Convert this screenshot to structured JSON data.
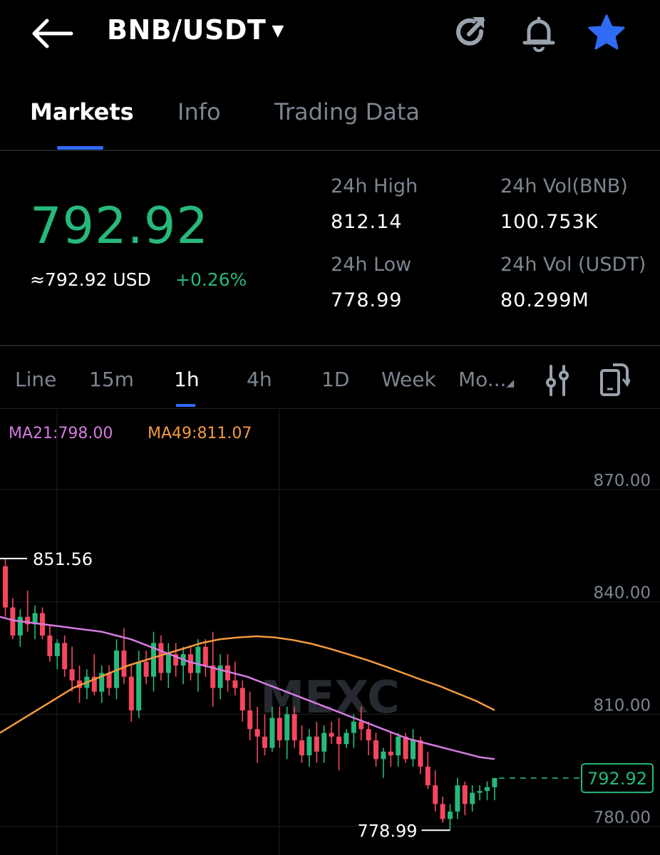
{
  "header": {
    "pair": "BNB/USDT",
    "icons": {
      "back": "back-arrow-icon",
      "share": "share-refresh-icon",
      "alert": "bell-icon",
      "favorite": "star-icon"
    },
    "favorite_color": "#2f6bf5"
  },
  "tabs": [
    {
      "label": "Markets",
      "active": true
    },
    {
      "label": "Info",
      "active": false
    },
    {
      "label": "Trading Data",
      "active": false
    }
  ],
  "price": {
    "last": "792.92",
    "usd": "≈792.92 USD",
    "change": "+0.26%",
    "color_up": "#26b97a"
  },
  "stats": {
    "high_label": "24h High",
    "high_value": "812.14",
    "low_label": "24h Low",
    "low_value": "778.99",
    "vol_base_label": "24h Vol(BNB)",
    "vol_base_value": "100.753K",
    "vol_quote_label": "24h Vol (USDT)",
    "vol_quote_value": "80.299M"
  },
  "intervals": [
    {
      "label": "Line",
      "active": false
    },
    {
      "label": "15m",
      "active": false
    },
    {
      "label": "1h",
      "active": true
    },
    {
      "label": "4h",
      "active": false
    },
    {
      "label": "1D",
      "active": false
    },
    {
      "label": "Week",
      "active": false
    },
    {
      "label": "Mo...",
      "active": false
    }
  ],
  "toolbar_icons": [
    "indicator-settings-icon",
    "screen-rotate-icon"
  ],
  "indicators": {
    "ma21": "MA21:798.00",
    "ma49": "MA49:811.07"
  },
  "watermark": "MEXC",
  "chart_data": {
    "type": "candlestick",
    "y_ticks": [
      "870.00",
      "840.00",
      "810.00",
      "780.00"
    ],
    "y_tick_values": [
      870,
      840,
      810,
      780
    ],
    "high_marker": "851.56",
    "low_marker": "778.99",
    "current_price_label": "792.92",
    "current_price": 792.92,
    "colors": {
      "up": "#26b97a",
      "down": "#f6465d",
      "ma21": "#d47be0",
      "ma49": "#f59a3e"
    },
    "candles": [
      [
        849.5,
        851.56,
        836,
        838.5
      ],
      [
        838.5,
        841,
        830,
        831
      ],
      [
        831,
        838,
        828,
        836
      ],
      [
        836,
        843,
        832,
        834
      ],
      [
        834,
        839,
        830,
        837
      ],
      [
        837,
        838.5,
        830,
        831
      ],
      [
        831,
        834,
        824,
        825.5
      ],
      [
        825.5,
        830,
        822,
        829
      ],
      [
        829,
        831,
        820,
        822
      ],
      [
        822,
        828,
        816,
        819
      ],
      [
        819,
        823,
        813,
        817
      ],
      [
        817,
        822,
        814,
        820
      ],
      [
        820,
        826,
        815,
        816
      ],
      [
        816,
        823,
        813,
        821
      ],
      [
        821,
        823,
        815,
        817
      ],
      [
        817,
        830,
        814,
        827
      ],
      [
        827,
        833,
        818,
        820
      ],
      [
        820,
        823,
        808,
        811
      ],
      [
        811,
        827,
        809,
        824
      ],
      [
        824,
        827,
        818,
        820
      ],
      [
        820,
        832,
        816,
        829
      ],
      [
        829,
        831,
        819,
        821
      ],
      [
        821,
        829,
        817,
        826
      ],
      [
        826,
        829,
        820,
        823
      ],
      [
        823,
        828,
        818,
        826
      ],
      [
        826,
        828,
        819,
        821
      ],
      [
        821,
        830,
        816,
        828
      ],
      [
        828,
        830,
        820,
        823
      ],
      [
        823,
        832,
        812,
        817
      ],
      [
        817,
        826,
        814,
        823
      ],
      [
        823,
        826,
        816,
        819
      ],
      [
        819,
        824,
        815,
        817
      ],
      [
        817,
        819,
        808,
        811
      ],
      [
        811,
        816,
        803,
        806
      ],
      [
        806,
        812,
        797,
        804
      ],
      [
        804,
        810,
        799,
        801
      ],
      [
        801,
        812,
        800,
        809
      ],
      [
        809,
        812,
        801,
        803
      ],
      [
        803,
        812,
        798,
        810
      ],
      [
        810,
        812,
        801,
        803
      ],
      [
        803,
        807,
        797,
        799
      ],
      [
        799,
        806,
        796,
        804
      ],
      [
        804,
        808,
        797,
        800
      ],
      [
        800,
        807,
        797,
        805
      ],
      [
        805,
        808,
        802,
        804
      ],
      [
        804,
        809,
        795,
        802
      ],
      [
        802,
        806,
        801,
        805
      ],
      [
        805,
        810,
        801,
        808
      ],
      [
        808,
        812,
        803,
        806
      ],
      [
        806,
        808,
        799,
        803
      ],
      [
        803,
        805,
        796,
        798
      ],
      [
        798,
        801,
        793,
        800
      ],
      [
        800,
        805,
        796,
        799
      ],
      [
        799,
        805,
        796,
        804
      ],
      [
        804,
        805,
        797,
        798
      ],
      [
        798,
        806,
        796,
        803
      ],
      [
        803,
        804,
        794,
        796
      ],
      [
        796,
        800,
        790,
        791
      ],
      [
        791,
        795,
        784,
        786
      ],
      [
        786,
        788,
        781,
        782
      ],
      [
        782,
        786,
        778.99,
        784
      ],
      [
        784,
        793,
        782,
        791
      ],
      [
        791,
        792,
        783,
        786
      ],
      [
        786,
        791,
        784,
        789
      ],
      [
        789,
        791,
        787,
        789.5
      ],
      [
        789.5,
        792,
        787,
        790.5
      ],
      [
        790.5,
        793,
        787,
        792.92
      ]
    ],
    "ma21": [
      836,
      835,
      834.5,
      834,
      833.5,
      833,
      832.5,
      832,
      831,
      830,
      828.5,
      827,
      825.5,
      824,
      823,
      822,
      821,
      820,
      818.5,
      817,
      815.5,
      814,
      812.5,
      811,
      809.5,
      808,
      806.5,
      805,
      803.5,
      802.5,
      801.5,
      800.5,
      799.5,
      798.5,
      798
    ],
    "ma49": [
      805,
      808,
      811,
      814,
      817,
      819,
      821,
      823,
      824.5,
      826,
      827.5,
      829,
      830,
      830.5,
      830.8,
      830.5,
      829.8,
      828.8,
      827.5,
      826,
      824.5,
      822.8,
      821,
      819.2,
      817.5,
      815.5,
      813.5,
      811.07
    ]
  }
}
